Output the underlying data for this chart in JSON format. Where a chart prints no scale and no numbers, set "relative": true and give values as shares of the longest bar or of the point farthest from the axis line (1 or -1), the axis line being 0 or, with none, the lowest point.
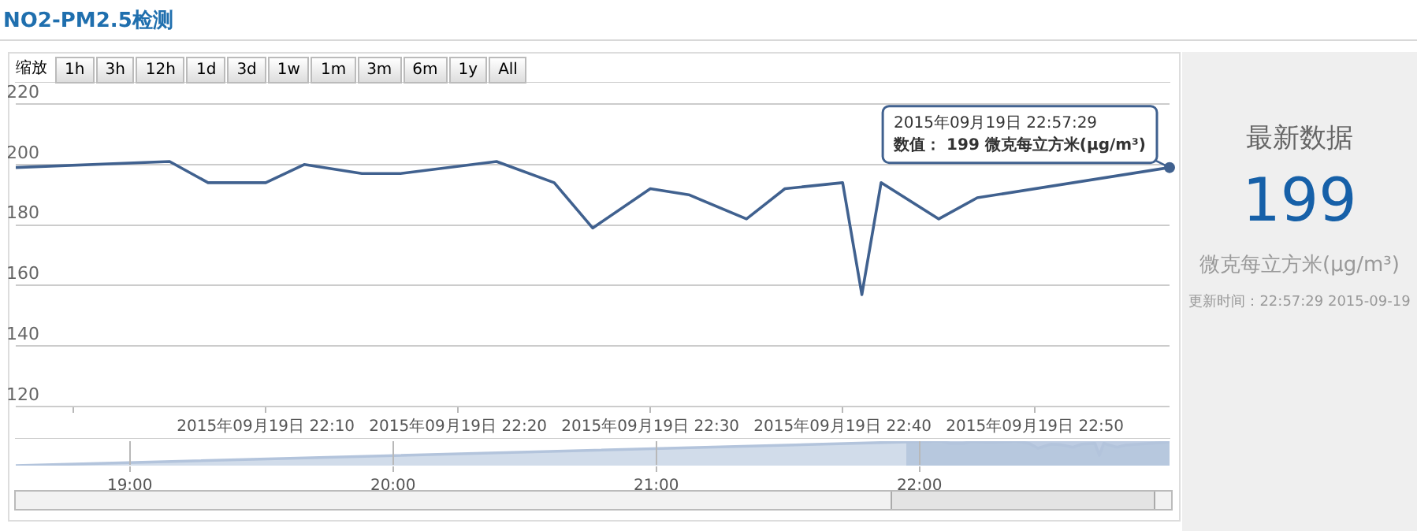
{
  "chart_data": [
    {
      "type": "line",
      "title": "NO2-PM2.5检测",
      "color": "#40618f",
      "grid": "y",
      "marker": "none",
      "line_style": "solid",
      "x": [
        "2015-09-19T21:57",
        "2015-09-19T22:05",
        "2015-09-19T22:07",
        "2015-09-19T22:10",
        "2015-09-19T22:12",
        "2015-09-19T22:15",
        "2015-09-19T22:17",
        "2015-09-19T22:22",
        "2015-09-19T22:25",
        "2015-09-19T22:27",
        "2015-09-19T22:30",
        "2015-09-19T22:32",
        "2015-09-19T22:35",
        "2015-09-19T22:37",
        "2015-09-19T22:40",
        "2015-09-19T22:41",
        "2015-09-19T22:42",
        "2015-09-19T22:45",
        "2015-09-19T22:47",
        "2015-09-19T22:57"
      ],
      "values": [
        199,
        201,
        194,
        194,
        200,
        197,
        197,
        201,
        194,
        179,
        192,
        190,
        182,
        192,
        194,
        157,
        194,
        182,
        189,
        199
      ],
      "xlim": [
        "2015-09-19T21:57",
        "2015-09-19T22:57"
      ],
      "xticks": [
        {
          "value": "2015-09-19T22:00",
          "label": null
        },
        {
          "value": "2015-09-19T22:10",
          "label": "2015年09月19日 22:10"
        },
        {
          "value": "2015-09-19T22:20",
          "label": "2015年09月19日 22:20"
        },
        {
          "value": "2015-09-19T22:30",
          "label": "2015年09月19日 22:30"
        },
        {
          "value": "2015-09-19T22:40",
          "label": "2015年09月19日 22:40"
        },
        {
          "value": "2015-09-19T22:50",
          "label": "2015年09月19日 22:50"
        }
      ],
      "ylim": [
        120,
        220
      ],
      "yticks": [
        120,
        140,
        160,
        180,
        200,
        220
      ],
      "annotations": [
        {
          "text": "2015年09月19日 22:57:29\n数值： 199 微克每立方米(µg/m³)",
          "x": "2015-09-19T22:57",
          "y": 199
        },
        "缩放",
        "1h",
        "3h",
        "12h",
        "1d",
        "3d",
        "1w",
        "1m",
        "3m",
        "6m",
        "1y",
        "All"
      ]
    },
    {
      "type": "area",
      "relative": true,
      "color": "#b3c4dc",
      "grid": "x",
      "x": [
        "2015-09-19T18:34",
        "2015-09-19T21:57",
        "2015-09-19T22:05",
        "2015-09-19T22:07",
        "2015-09-19T22:10",
        "2015-09-19T22:12",
        "2015-09-19T22:15",
        "2015-09-19T22:17",
        "2015-09-19T22:22",
        "2015-09-19T22:25",
        "2015-09-19T22:27",
        "2015-09-19T22:30",
        "2015-09-19T22:32",
        "2015-09-19T22:35",
        "2015-09-19T22:37",
        "2015-09-19T22:40",
        "2015-09-19T22:41",
        "2015-09-19T22:42",
        "2015-09-19T22:45",
        "2015-09-19T22:47",
        "2015-09-19T22:57"
      ],
      "values": [
        0,
        0.97,
        1,
        0.91,
        0.91,
        0.99,
        0.95,
        0.95,
        1,
        0.91,
        0.71,
        0.88,
        0.86,
        0.75,
        0.88,
        0.91,
        0.42,
        0.91,
        0.75,
        0.84,
        0.97
      ],
      "xlim": [
        "2015-09-19T18:34",
        "2015-09-19T22:57"
      ],
      "xticks": [
        {
          "value": "2015-09-19T19:00",
          "label": "19:00"
        },
        {
          "value": "2015-09-19T20:00",
          "label": "20:00"
        },
        {
          "value": "2015-09-19T21:00",
          "label": "21:00"
        },
        {
          "value": "2015-09-19T22:00",
          "label": "22:00"
        }
      ],
      "bands": [
        {
          "axis": "x",
          "from": "2015-09-19T21:57",
          "to": "2015-09-19T22:57",
          "color": "#6d8fbf"
        }
      ]
    },
    {
      "type": "other",
      "title": "最新数据",
      "annotations": [
        "199",
        "微克每立方米(µg/m³)",
        "更新时间：22:57:29 2015-09-19"
      ]
    }
  ]
}
